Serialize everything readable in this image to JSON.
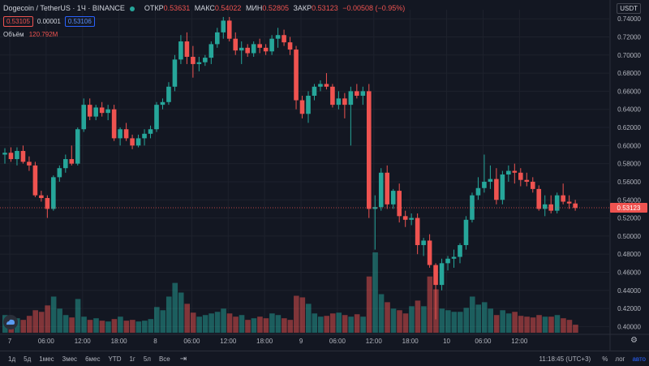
{
  "legend": {
    "symbol": "Dogecoin / TetherUS · 1Ч · BINANCE",
    "open_label": "ОТКР",
    "open": "0.53631",
    "high_label": "МАКС",
    "high": "0.54022",
    "low_label": "МИН",
    "low": "0.52805",
    "close_label": "ЗАКР",
    "close": "0.53123",
    "change": "−0.00508 (−0.95%)",
    "bid": "0.53105",
    "spread": "0.00001",
    "ask": "0.53106"
  },
  "volume": {
    "label": "Объём",
    "value": "120.792M"
  },
  "currency": "USDT",
  "bottom_bar": {
    "timeframes": [
      "1д",
      "5д",
      "1мес",
      "3мес",
      "6мес",
      "YTD",
      "1г",
      "5л",
      "Все"
    ],
    "clock": "11:18:45 (UTC+3)",
    "percent": "%",
    "log": "лог",
    "auto": "авто"
  },
  "colors": {
    "up": "#26a69a",
    "down": "#ef5350",
    "background": "#131722",
    "grid": "#1e222d",
    "text": "#b2b5be"
  },
  "chart_data": {
    "type": "candlestick",
    "y_ticks": [
      "0.40000",
      "0.42000",
      "0.44000",
      "0.46000",
      "0.48000",
      "0.50000",
      "0.52000",
      "0.54000",
      "0.56000",
      "0.58000",
      "0.60000",
      "0.62000",
      "0.64000",
      "0.66000",
      "0.68000",
      "0.70000",
      "0.72000",
      "0.74000"
    ],
    "ylim": [
      0.395,
      0.75
    ],
    "last_price": "0.53123",
    "last_price_value": 0.53123,
    "x_labels": [
      "7",
      "06:00",
      "12:00",
      "18:00",
      "8",
      "06:00",
      "12:00",
      "18:00",
      "9",
      "06:00",
      "12:00",
      "18:00",
      "10",
      "06:00",
      "12:00"
    ],
    "x_label_hours": [
      0,
      6,
      12,
      18,
      24,
      30,
      36,
      42,
      48,
      54,
      60,
      66,
      72,
      78,
      84
    ],
    "ohlc": [
      [
        0.59,
        0.597,
        0.58,
        0.592
      ],
      [
        0.592,
        0.598,
        0.582,
        0.585
      ],
      [
        0.585,
        0.598,
        0.578,
        0.594
      ],
      [
        0.594,
        0.6,
        0.58,
        0.582
      ],
      [
        0.582,
        0.588,
        0.572,
        0.578
      ],
      [
        0.578,
        0.582,
        0.543,
        0.545
      ],
      [
        0.545,
        0.55,
        0.538,
        0.542
      ],
      [
        0.542,
        0.545,
        0.52,
        0.53
      ],
      [
        0.53,
        0.567,
        0.528,
        0.565
      ],
      [
        0.565,
        0.578,
        0.56,
        0.575
      ],
      [
        0.575,
        0.59,
        0.57,
        0.585
      ],
      [
        0.585,
        0.6,
        0.578,
        0.58
      ],
      [
        0.58,
        0.62,
        0.578,
        0.618
      ],
      [
        0.618,
        0.652,
        0.615,
        0.645
      ],
      [
        0.645,
        0.652,
        0.628,
        0.632
      ],
      [
        0.632,
        0.645,
        0.628,
        0.642
      ],
      [
        0.642,
        0.648,
        0.632,
        0.636
      ],
      [
        0.636,
        0.645,
        0.628,
        0.64
      ],
      [
        0.64,
        0.645,
        0.605,
        0.608
      ],
      [
        0.608,
        0.62,
        0.6,
        0.618
      ],
      [
        0.618,
        0.625,
        0.605,
        0.608
      ],
      [
        0.608,
        0.612,
        0.596,
        0.6
      ],
      [
        0.6,
        0.612,
        0.598,
        0.608
      ],
      [
        0.608,
        0.618,
        0.6,
        0.613
      ],
      [
        0.613,
        0.622,
        0.608,
        0.618
      ],
      [
        0.618,
        0.648,
        0.615,
        0.645
      ],
      [
        0.645,
        0.652,
        0.64,
        0.648
      ],
      [
        0.648,
        0.67,
        0.645,
        0.665
      ],
      [
        0.665,
        0.7,
        0.66,
        0.695
      ],
      [
        0.695,
        0.722,
        0.69,
        0.715
      ],
      [
        0.715,
        0.725,
        0.69,
        0.698
      ],
      [
        0.698,
        0.71,
        0.675,
        0.69
      ],
      [
        0.69,
        0.698,
        0.682,
        0.692
      ],
      [
        0.692,
        0.7,
        0.688,
        0.697
      ],
      [
        0.697,
        0.715,
        0.69,
        0.712
      ],
      [
        0.712,
        0.73,
        0.708,
        0.725
      ],
      [
        0.725,
        0.742,
        0.718,
        0.738
      ],
      [
        0.738,
        0.742,
        0.715,
        0.718
      ],
      [
        0.718,
        0.725,
        0.7,
        0.705
      ],
      [
        0.705,
        0.715,
        0.69,
        0.708
      ],
      [
        0.708,
        0.712,
        0.698,
        0.702
      ],
      [
        0.702,
        0.715,
        0.698,
        0.712
      ],
      [
        0.712,
        0.718,
        0.702,
        0.708
      ],
      [
        0.708,
        0.712,
        0.7,
        0.704
      ],
      [
        0.704,
        0.722,
        0.7,
        0.718
      ],
      [
        0.718,
        0.73,
        0.708,
        0.722
      ],
      [
        0.722,
        0.728,
        0.71,
        0.714
      ],
      [
        0.714,
        0.72,
        0.7,
        0.706
      ],
      [
        0.706,
        0.71,
        0.64,
        0.65
      ],
      [
        0.65,
        0.655,
        0.63,
        0.635
      ],
      [
        0.635,
        0.66,
        0.625,
        0.655
      ],
      [
        0.655,
        0.668,
        0.65,
        0.665
      ],
      [
        0.665,
        0.672,
        0.66,
        0.668
      ],
      [
        0.668,
        0.68,
        0.662,
        0.665
      ],
      [
        0.665,
        0.668,
        0.642,
        0.645
      ],
      [
        0.645,
        0.66,
        0.64,
        0.652
      ],
      [
        0.652,
        0.658,
        0.63,
        0.645
      ],
      [
        0.645,
        0.665,
        0.6,
        0.66
      ],
      [
        0.66,
        0.668,
        0.652,
        0.655
      ],
      [
        0.655,
        0.665,
        0.645,
        0.66
      ],
      [
        0.66,
        0.668,
        0.52,
        0.53
      ],
      [
        0.53,
        0.545,
        0.485,
        0.532
      ],
      [
        0.532,
        0.575,
        0.528,
        0.57
      ],
      [
        0.57,
        0.578,
        0.53,
        0.535
      ],
      [
        0.535,
        0.552,
        0.53,
        0.55
      ],
      [
        0.55,
        0.558,
        0.515,
        0.522
      ],
      [
        0.522,
        0.528,
        0.51,
        0.518
      ],
      [
        0.518,
        0.525,
        0.512,
        0.52
      ],
      [
        0.52,
        0.525,
        0.48,
        0.49
      ],
      [
        0.49,
        0.498,
        0.478,
        0.495
      ],
      [
        0.495,
        0.502,
        0.465,
        0.468
      ],
      [
        0.468,
        0.47,
        0.408,
        0.446
      ],
      [
        0.446,
        0.475,
        0.44,
        0.47
      ],
      [
        0.47,
        0.478,
        0.462,
        0.475
      ],
      [
        0.475,
        0.485,
        0.465,
        0.477
      ],
      [
        0.477,
        0.492,
        0.47,
        0.49
      ],
      [
        0.49,
        0.522,
        0.485,
        0.518
      ],
      [
        0.518,
        0.548,
        0.515,
        0.545
      ],
      [
        0.545,
        0.565,
        0.54,
        0.553
      ],
      [
        0.553,
        0.59,
        0.548,
        0.56
      ],
      [
        0.56,
        0.578,
        0.552,
        0.563
      ],
      [
        0.563,
        0.575,
        0.535,
        0.54
      ],
      [
        0.54,
        0.572,
        0.535,
        0.568
      ],
      [
        0.568,
        0.578,
        0.56,
        0.572
      ],
      [
        0.572,
        0.58,
        0.558,
        0.57
      ],
      [
        0.57,
        0.575,
        0.555,
        0.562
      ],
      [
        0.562,
        0.57,
        0.555,
        0.56
      ],
      [
        0.56,
        0.565,
        0.548,
        0.552
      ],
      [
        0.552,
        0.556,
        0.528,
        0.53
      ],
      [
        0.53,
        0.545,
        0.522,
        0.535
      ],
      [
        0.535,
        0.545,
        0.525,
        0.528
      ],
      [
        0.528,
        0.548,
        0.525,
        0.545
      ],
      [
        0.545,
        0.558,
        0.535,
        0.538
      ],
      [
        0.538,
        0.545,
        0.53,
        0.536
      ],
      [
        0.536,
        0.54,
        0.528,
        0.531
      ]
    ],
    "volume_max": 0.5,
    "volumes": [
      0.22,
      0.15,
      0.18,
      0.16,
      0.21,
      0.28,
      0.26,
      0.34,
      0.45,
      0.3,
      0.22,
      0.19,
      0.42,
      0.2,
      0.16,
      0.18,
      0.15,
      0.14,
      0.17,
      0.2,
      0.15,
      0.16,
      0.14,
      0.15,
      0.17,
      0.32,
      0.28,
      0.45,
      0.62,
      0.5,
      0.36,
      0.25,
      0.2,
      0.22,
      0.24,
      0.26,
      0.3,
      0.24,
      0.2,
      0.22,
      0.16,
      0.18,
      0.2,
      0.18,
      0.24,
      0.22,
      0.18,
      0.16,
      0.46,
      0.44,
      0.36,
      0.24,
      0.2,
      0.21,
      0.24,
      0.25,
      0.22,
      0.2,
      0.23,
      0.2,
      0.7,
      1.0,
      0.48,
      0.38,
      0.3,
      0.28,
      0.24,
      0.33,
      0.4,
      0.33,
      0.7,
      0.54,
      0.3,
      0.28,
      0.26,
      0.26,
      0.31,
      0.45,
      0.35,
      0.38,
      0.3,
      0.22,
      0.28,
      0.24,
      0.26,
      0.21,
      0.2,
      0.19,
      0.22,
      0.2,
      0.2,
      0.22,
      0.18,
      0.16,
      0.1
    ]
  }
}
